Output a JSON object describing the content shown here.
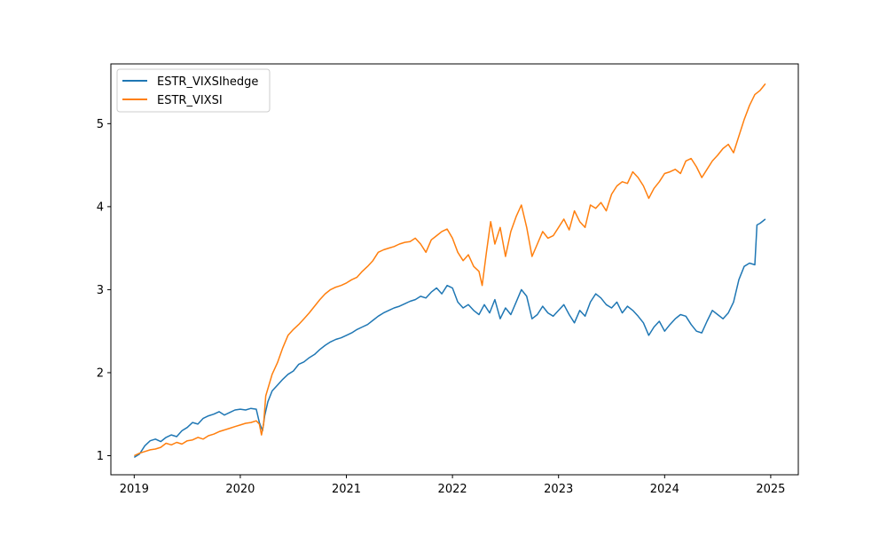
{
  "chart_data": {
    "type": "line",
    "title": "",
    "xlabel": "",
    "ylabel": "",
    "xlim": [
      2018.78,
      2025.26
    ],
    "ylim": [
      0.77,
      5.72
    ],
    "x_ticks": [
      2019,
      2020,
      2021,
      2022,
      2023,
      2024,
      2025
    ],
    "x_tick_labels": [
      "2019",
      "2020",
      "2021",
      "2022",
      "2023",
      "2024",
      "2025"
    ],
    "y_ticks": [
      1,
      2,
      3,
      4,
      5
    ],
    "y_tick_labels": [
      "1",
      "2",
      "3",
      "4",
      "5"
    ],
    "grid": false,
    "legend_position": "upper left",
    "series": [
      {
        "name": "ESTR_VIXSIhedge",
        "color": "#1f77b4",
        "points": [
          [
            2019.0,
            0.98
          ],
          [
            2019.05,
            1.02
          ],
          [
            2019.1,
            1.12
          ],
          [
            2019.15,
            1.18
          ],
          [
            2019.2,
            1.2
          ],
          [
            2019.25,
            1.17
          ],
          [
            2019.3,
            1.22
          ],
          [
            2019.35,
            1.25
          ],
          [
            2019.4,
            1.23
          ],
          [
            2019.45,
            1.3
          ],
          [
            2019.5,
            1.34
          ],
          [
            2019.55,
            1.4
          ],
          [
            2019.6,
            1.38
          ],
          [
            2019.65,
            1.45
          ],
          [
            2019.7,
            1.48
          ],
          [
            2019.75,
            1.5
          ],
          [
            2019.8,
            1.53
          ],
          [
            2019.85,
            1.49
          ],
          [
            2019.9,
            1.52
          ],
          [
            2019.95,
            1.55
          ],
          [
            2020.0,
            1.56
          ],
          [
            2020.05,
            1.55
          ],
          [
            2020.1,
            1.57
          ],
          [
            2020.15,
            1.56
          ],
          [
            2020.18,
            1.4
          ],
          [
            2020.21,
            1.3
          ],
          [
            2020.23,
            1.48
          ],
          [
            2020.26,
            1.65
          ],
          [
            2020.3,
            1.78
          ],
          [
            2020.35,
            1.85
          ],
          [
            2020.4,
            1.92
          ],
          [
            2020.45,
            1.98
          ],
          [
            2020.5,
            2.02
          ],
          [
            2020.55,
            2.1
          ],
          [
            2020.6,
            2.13
          ],
          [
            2020.65,
            2.18
          ],
          [
            2020.7,
            2.22
          ],
          [
            2020.75,
            2.28
          ],
          [
            2020.8,
            2.33
          ],
          [
            2020.85,
            2.37
          ],
          [
            2020.9,
            2.4
          ],
          [
            2020.95,
            2.42
          ],
          [
            2021.0,
            2.45
          ],
          [
            2021.05,
            2.48
          ],
          [
            2021.1,
            2.52
          ],
          [
            2021.15,
            2.55
          ],
          [
            2021.2,
            2.58
          ],
          [
            2021.25,
            2.63
          ],
          [
            2021.3,
            2.68
          ],
          [
            2021.35,
            2.72
          ],
          [
            2021.4,
            2.75
          ],
          [
            2021.45,
            2.78
          ],
          [
            2021.5,
            2.8
          ],
          [
            2021.55,
            2.83
          ],
          [
            2021.6,
            2.86
          ],
          [
            2021.65,
            2.88
          ],
          [
            2021.7,
            2.92
          ],
          [
            2021.75,
            2.9
          ],
          [
            2021.8,
            2.97
          ],
          [
            2021.85,
            3.02
          ],
          [
            2021.9,
            2.95
          ],
          [
            2021.95,
            3.05
          ],
          [
            2022.0,
            3.02
          ],
          [
            2022.05,
            2.85
          ],
          [
            2022.1,
            2.78
          ],
          [
            2022.15,
            2.82
          ],
          [
            2022.2,
            2.75
          ],
          [
            2022.25,
            2.7
          ],
          [
            2022.3,
            2.82
          ],
          [
            2022.35,
            2.72
          ],
          [
            2022.4,
            2.88
          ],
          [
            2022.45,
            2.65
          ],
          [
            2022.5,
            2.78
          ],
          [
            2022.55,
            2.7
          ],
          [
            2022.6,
            2.85
          ],
          [
            2022.65,
            3.0
          ],
          [
            2022.7,
            2.92
          ],
          [
            2022.75,
            2.65
          ],
          [
            2022.8,
            2.7
          ],
          [
            2022.85,
            2.8
          ],
          [
            2022.9,
            2.72
          ],
          [
            2022.95,
            2.68
          ],
          [
            2023.0,
            2.75
          ],
          [
            2023.05,
            2.82
          ],
          [
            2023.1,
            2.7
          ],
          [
            2023.15,
            2.6
          ],
          [
            2023.2,
            2.75
          ],
          [
            2023.25,
            2.68
          ],
          [
            2023.3,
            2.85
          ],
          [
            2023.35,
            2.95
          ],
          [
            2023.4,
            2.9
          ],
          [
            2023.45,
            2.82
          ],
          [
            2023.5,
            2.78
          ],
          [
            2023.55,
            2.85
          ],
          [
            2023.6,
            2.72
          ],
          [
            2023.65,
            2.8
          ],
          [
            2023.7,
            2.75
          ],
          [
            2023.75,
            2.68
          ],
          [
            2023.8,
            2.6
          ],
          [
            2023.85,
            2.45
          ],
          [
            2023.9,
            2.55
          ],
          [
            2023.95,
            2.62
          ],
          [
            2024.0,
            2.5
          ],
          [
            2024.05,
            2.58
          ],
          [
            2024.1,
            2.65
          ],
          [
            2024.15,
            2.7
          ],
          [
            2024.2,
            2.68
          ],
          [
            2024.25,
            2.58
          ],
          [
            2024.3,
            2.5
          ],
          [
            2024.35,
            2.48
          ],
          [
            2024.4,
            2.62
          ],
          [
            2024.45,
            2.75
          ],
          [
            2024.5,
            2.7
          ],
          [
            2024.55,
            2.65
          ],
          [
            2024.6,
            2.72
          ],
          [
            2024.65,
            2.85
          ],
          [
            2024.7,
            3.12
          ],
          [
            2024.75,
            3.28
          ],
          [
            2024.8,
            3.32
          ],
          [
            2024.85,
            3.3
          ],
          [
            2024.87,
            3.78
          ],
          [
            2024.9,
            3.8
          ],
          [
            2024.95,
            3.85
          ]
        ]
      },
      {
        "name": "ESTR_VIXSI",
        "color": "#ff7f0e",
        "points": [
          [
            2019.0,
            1.0
          ],
          [
            2019.05,
            1.03
          ],
          [
            2019.1,
            1.05
          ],
          [
            2019.15,
            1.07
          ],
          [
            2019.2,
            1.08
          ],
          [
            2019.25,
            1.1
          ],
          [
            2019.3,
            1.15
          ],
          [
            2019.35,
            1.13
          ],
          [
            2019.4,
            1.16
          ],
          [
            2019.45,
            1.14
          ],
          [
            2019.5,
            1.18
          ],
          [
            2019.55,
            1.19
          ],
          [
            2019.6,
            1.22
          ],
          [
            2019.65,
            1.2
          ],
          [
            2019.7,
            1.24
          ],
          [
            2019.75,
            1.26
          ],
          [
            2019.8,
            1.29
          ],
          [
            2019.85,
            1.31
          ],
          [
            2019.9,
            1.33
          ],
          [
            2019.95,
            1.35
          ],
          [
            2020.0,
            1.37
          ],
          [
            2020.05,
            1.39
          ],
          [
            2020.1,
            1.4
          ],
          [
            2020.15,
            1.42
          ],
          [
            2020.18,
            1.38
          ],
          [
            2020.2,
            1.25
          ],
          [
            2020.22,
            1.38
          ],
          [
            2020.24,
            1.72
          ],
          [
            2020.27,
            1.85
          ],
          [
            2020.3,
            1.98
          ],
          [
            2020.35,
            2.12
          ],
          [
            2020.4,
            2.3
          ],
          [
            2020.45,
            2.45
          ],
          [
            2020.5,
            2.52
          ],
          [
            2020.55,
            2.58
          ],
          [
            2020.6,
            2.65
          ],
          [
            2020.65,
            2.72
          ],
          [
            2020.7,
            2.8
          ],
          [
            2020.75,
            2.88
          ],
          [
            2020.8,
            2.95
          ],
          [
            2020.85,
            3.0
          ],
          [
            2020.9,
            3.03
          ],
          [
            2020.95,
            3.05
          ],
          [
            2021.0,
            3.08
          ],
          [
            2021.05,
            3.12
          ],
          [
            2021.1,
            3.15
          ],
          [
            2021.15,
            3.22
          ],
          [
            2021.2,
            3.28
          ],
          [
            2021.25,
            3.35
          ],
          [
            2021.3,
            3.45
          ],
          [
            2021.35,
            3.48
          ],
          [
            2021.4,
            3.5
          ],
          [
            2021.45,
            3.52
          ],
          [
            2021.5,
            3.55
          ],
          [
            2021.55,
            3.57
          ],
          [
            2021.6,
            3.58
          ],
          [
            2021.65,
            3.62
          ],
          [
            2021.7,
            3.55
          ],
          [
            2021.75,
            3.45
          ],
          [
            2021.8,
            3.6
          ],
          [
            2021.85,
            3.65
          ],
          [
            2021.9,
            3.7
          ],
          [
            2021.95,
            3.73
          ],
          [
            2022.0,
            3.62
          ],
          [
            2022.05,
            3.45
          ],
          [
            2022.1,
            3.35
          ],
          [
            2022.15,
            3.42
          ],
          [
            2022.2,
            3.28
          ],
          [
            2022.25,
            3.22
          ],
          [
            2022.28,
            3.05
          ],
          [
            2022.32,
            3.45
          ],
          [
            2022.36,
            3.82
          ],
          [
            2022.4,
            3.55
          ],
          [
            2022.45,
            3.75
          ],
          [
            2022.5,
            3.4
          ],
          [
            2022.55,
            3.7
          ],
          [
            2022.6,
            3.88
          ],
          [
            2022.65,
            4.02
          ],
          [
            2022.7,
            3.75
          ],
          [
            2022.75,
            3.4
          ],
          [
            2022.8,
            3.55
          ],
          [
            2022.85,
            3.7
          ],
          [
            2022.9,
            3.62
          ],
          [
            2022.95,
            3.65
          ],
          [
            2023.0,
            3.75
          ],
          [
            2023.05,
            3.85
          ],
          [
            2023.1,
            3.72
          ],
          [
            2023.15,
            3.95
          ],
          [
            2023.2,
            3.82
          ],
          [
            2023.25,
            3.75
          ],
          [
            2023.3,
            4.02
          ],
          [
            2023.35,
            3.98
          ],
          [
            2023.4,
            4.05
          ],
          [
            2023.45,
            3.95
          ],
          [
            2023.5,
            4.15
          ],
          [
            2023.55,
            4.25
          ],
          [
            2023.6,
            4.3
          ],
          [
            2023.65,
            4.28
          ],
          [
            2023.7,
            4.42
          ],
          [
            2023.75,
            4.35
          ],
          [
            2023.8,
            4.25
          ],
          [
            2023.85,
            4.1
          ],
          [
            2023.9,
            4.22
          ],
          [
            2023.95,
            4.3
          ],
          [
            2024.0,
            4.4
          ],
          [
            2024.05,
            4.42
          ],
          [
            2024.1,
            4.45
          ],
          [
            2024.15,
            4.4
          ],
          [
            2024.2,
            4.55
          ],
          [
            2024.25,
            4.58
          ],
          [
            2024.3,
            4.48
          ],
          [
            2024.35,
            4.35
          ],
          [
            2024.4,
            4.45
          ],
          [
            2024.45,
            4.55
          ],
          [
            2024.5,
            4.62
          ],
          [
            2024.55,
            4.7
          ],
          [
            2024.6,
            4.75
          ],
          [
            2024.65,
            4.65
          ],
          [
            2024.7,
            4.85
          ],
          [
            2024.75,
            5.05
          ],
          [
            2024.8,
            5.22
          ],
          [
            2024.85,
            5.35
          ],
          [
            2024.9,
            5.4
          ],
          [
            2024.95,
            5.48
          ]
        ]
      }
    ]
  }
}
